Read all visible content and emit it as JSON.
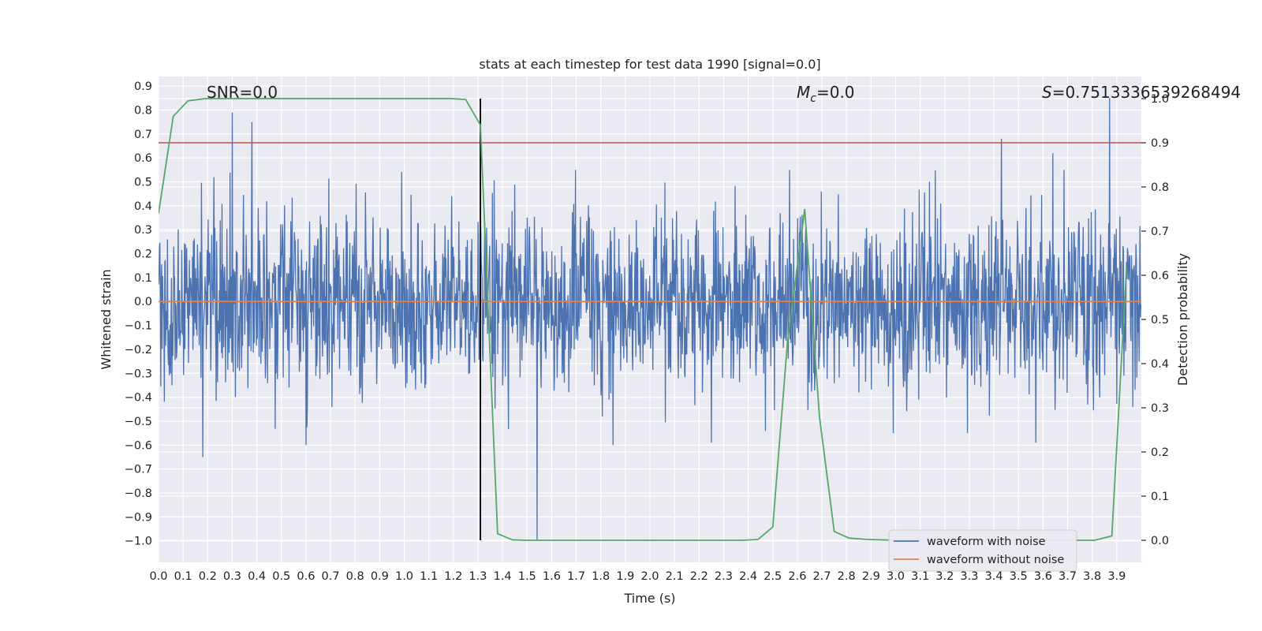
{
  "chart_data": {
    "type": "line",
    "title": "stats at each timestep for test data 1990 [signal=0.0]",
    "xlabel": "Time (s)",
    "ylabel": "Whitened strain",
    "y2label": "Detection probability",
    "xlim": [
      0.0,
      4.0
    ],
    "ylim": [
      -1.09,
      0.94
    ],
    "y2lim": [
      -0.05,
      1.05
    ],
    "x_ticks": [
      "0.0",
      "0.1",
      "0.2",
      "0.3",
      "0.4",
      "0.5",
      "0.6",
      "0.7",
      "0.8",
      "0.9",
      "1.0",
      "1.1",
      "1.2",
      "1.3",
      "1.4",
      "1.5",
      "1.6",
      "1.7",
      "1.8",
      "1.9",
      "2.0",
      "2.1",
      "2.2",
      "2.3",
      "2.4",
      "2.5",
      "2.6",
      "2.7",
      "2.8",
      "2.9",
      "3.0",
      "3.1",
      "3.2",
      "3.3",
      "3.4",
      "3.5",
      "3.6",
      "3.7",
      "3.8",
      "3.9"
    ],
    "y_ticks": [
      "0.9",
      "0.8",
      "0.7",
      "0.6",
      "0.5",
      "0.4",
      "0.3",
      "0.2",
      "0.1",
      "0.0",
      "−0.1",
      "−0.2",
      "−0.3",
      "−0.4",
      "−0.5",
      "−0.6",
      "−0.7",
      "−0.8",
      "−0.9",
      "−1.0"
    ],
    "y2_ticks": [
      "0.0",
      "0.1",
      "0.2",
      "0.3",
      "0.4",
      "0.5",
      "0.6",
      "0.7",
      "0.8",
      "0.9",
      "1.0"
    ],
    "grid": true,
    "legend_position": "lower-right",
    "annotations": {
      "snr": "SNR=0.0",
      "mc_symbol": "M",
      "mc_sub": "c",
      "mc_value": "=0.0",
      "s_symbol": "S",
      "s_value": "=0.7513336539268494"
    },
    "threshold": 0.9,
    "vline_x": 1.31,
    "spikes": [
      [
        0.3,
        0.79
      ],
      [
        0.38,
        0.75
      ],
      [
        1.54,
        -1.0
      ],
      [
        3.87,
        0.85
      ],
      [
        0.18,
        -0.65
      ],
      [
        0.6,
        -0.6
      ],
      [
        1.85,
        -0.6
      ],
      [
        3.43,
        0.68
      ],
      [
        3.64,
        0.62
      ],
      [
        2.25,
        -0.59
      ],
      [
        3.57,
        -0.59
      ]
    ],
    "series": [
      {
        "name": "waveform with noise",
        "color": "#4c72b0",
        "kind": "noise",
        "n": 2200,
        "amplitude": 0.55,
        "seed": 1990
      },
      {
        "name": "waveform without noise",
        "color": "#dd8452",
        "kind": "constant",
        "value": 0.0
      },
      {
        "name": "",
        "color": "#55a868",
        "kind": "probability",
        "x": [
          0.0,
          0.06,
          0.12,
          0.19,
          0.25,
          0.31,
          0.38,
          0.44,
          0.5,
          0.56,
          0.63,
          0.69,
          0.75,
          0.81,
          0.88,
          0.94,
          1.0,
          1.06,
          1.13,
          1.19,
          1.25,
          1.31,
          1.38,
          1.44,
          1.5,
          1.56,
          1.63,
          1.69,
          1.75,
          1.81,
          1.88,
          1.94,
          2.0,
          2.06,
          2.13,
          2.19,
          2.25,
          2.31,
          2.38,
          2.44,
          2.5,
          2.56,
          2.63,
          2.69,
          2.75,
          2.81,
          2.88,
          2.94,
          3.0,
          3.06,
          3.13,
          3.19,
          3.25,
          3.31,
          3.38,
          3.44,
          3.5,
          3.56,
          3.63,
          3.69,
          3.75,
          3.81,
          3.88,
          3.94
        ],
        "y": [
          0.74,
          0.96,
          0.995,
          1.0,
          1.0,
          1.0,
          1.0,
          1.0,
          1.0,
          1.0,
          1.0,
          1.0,
          1.0,
          1.0,
          1.0,
          1.0,
          1.0,
          1.0,
          1.0,
          1.0,
          0.998,
          0.94,
          0.015,
          0.001,
          0.0,
          0.0,
          0.0,
          0.0,
          0.0,
          0.0,
          0.0,
          0.0,
          0.0,
          0.0,
          0.0,
          0.0,
          0.0,
          0.0,
          0.0,
          0.002,
          0.03,
          0.45,
          0.75,
          0.28,
          0.02,
          0.005,
          0.002,
          0.001,
          0.0,
          0.0,
          0.0,
          0.0,
          0.0,
          0.0,
          0.0,
          0.0,
          0.0,
          0.0,
          0.0,
          0.0,
          0.0,
          0.0,
          0.01,
          0.62
        ]
      }
    ]
  }
}
